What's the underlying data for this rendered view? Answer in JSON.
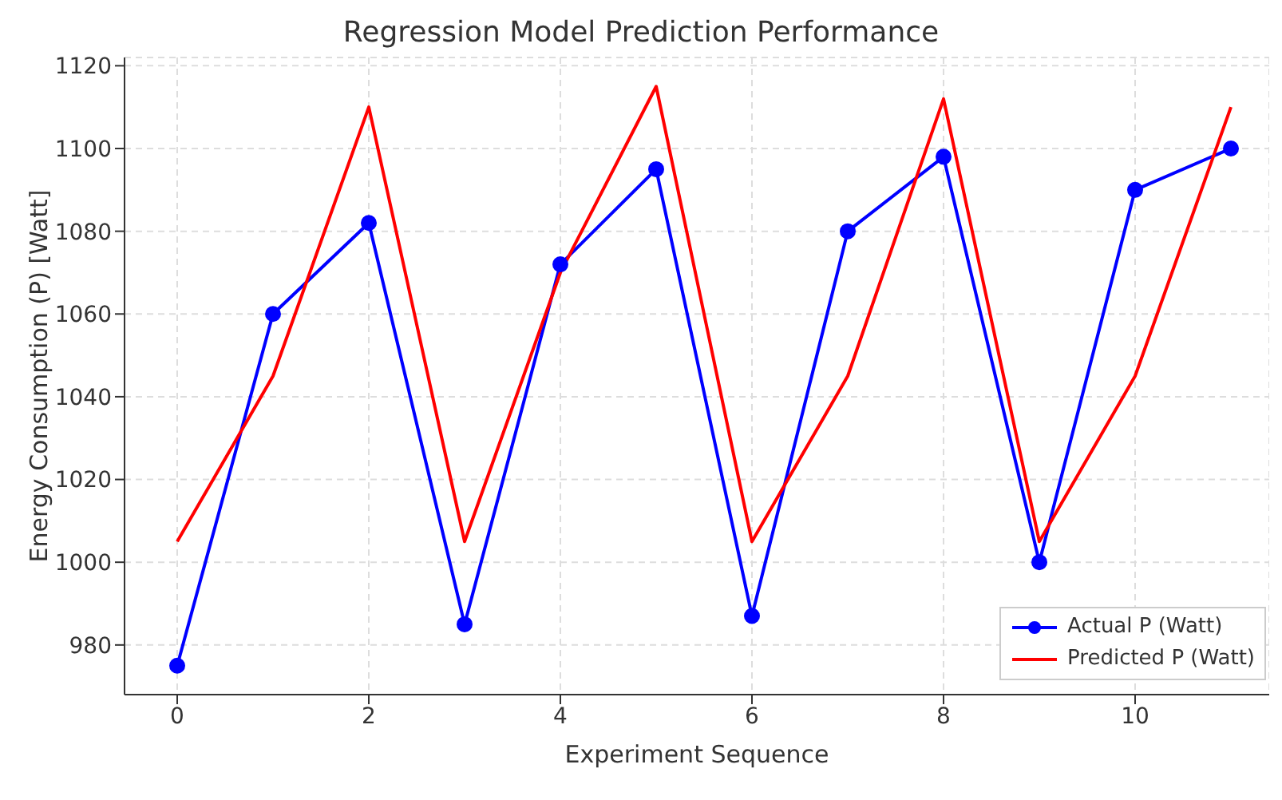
{
  "chart_data": {
    "type": "line",
    "title": "Regression Model Prediction Performance",
    "xlabel": "Experiment Sequence",
    "ylabel": "Energy Consumption (P) [Watt]",
    "x": [
      0,
      1,
      2,
      3,
      4,
      5,
      6,
      7,
      8,
      9,
      10,
      11
    ],
    "series": [
      {
        "name": "Actual P (Watt)",
        "color": "#0000ff",
        "marker": "circle",
        "values": [
          975,
          1060,
          1082,
          985,
          1072,
          1095,
          987,
          1080,
          1098,
          1000,
          1090,
          1100
        ]
      },
      {
        "name": "Predicted P (Watt)",
        "color": "#ff0000",
        "marker": "none",
        "values": [
          1005,
          1045,
          1110,
          1005,
          1070,
          1115,
          1005,
          1045,
          1112,
          1005,
          1045,
          1110
        ]
      }
    ],
    "xlim": [
      -0.55,
      11.4
    ],
    "xticks": [
      0,
      2,
      4,
      6,
      8,
      10
    ],
    "ylim": [
      968,
      1122
    ],
    "yticks": [
      980,
      1000,
      1020,
      1040,
      1060,
      1080,
      1100,
      1120
    ],
    "grid": true,
    "legend": "bottom right",
    "line_style": "solid"
  }
}
